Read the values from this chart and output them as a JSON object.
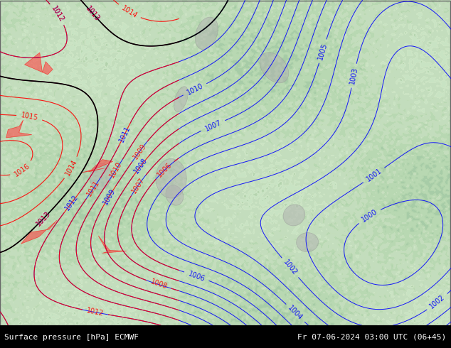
{
  "title_left": "Surface pressure [hPa] ECMWF",
  "title_right": "Fr 07-06-2024 03:00 UTC (06+45)",
  "bg_color": "#c8e6c8",
  "map_bg": "#a8d4a8",
  "border_color": "#888888",
  "fig_width": 6.34,
  "fig_height": 4.9,
  "dpi": 100,
  "footer_bg": "#000000",
  "footer_text_color": "#ffffff",
  "contour_color_blue": "#0000ff",
  "contour_color_red": "#ff0000",
  "contour_color_black": "#000000",
  "label_fontsize": 7,
  "footer_fontsize": 8
}
